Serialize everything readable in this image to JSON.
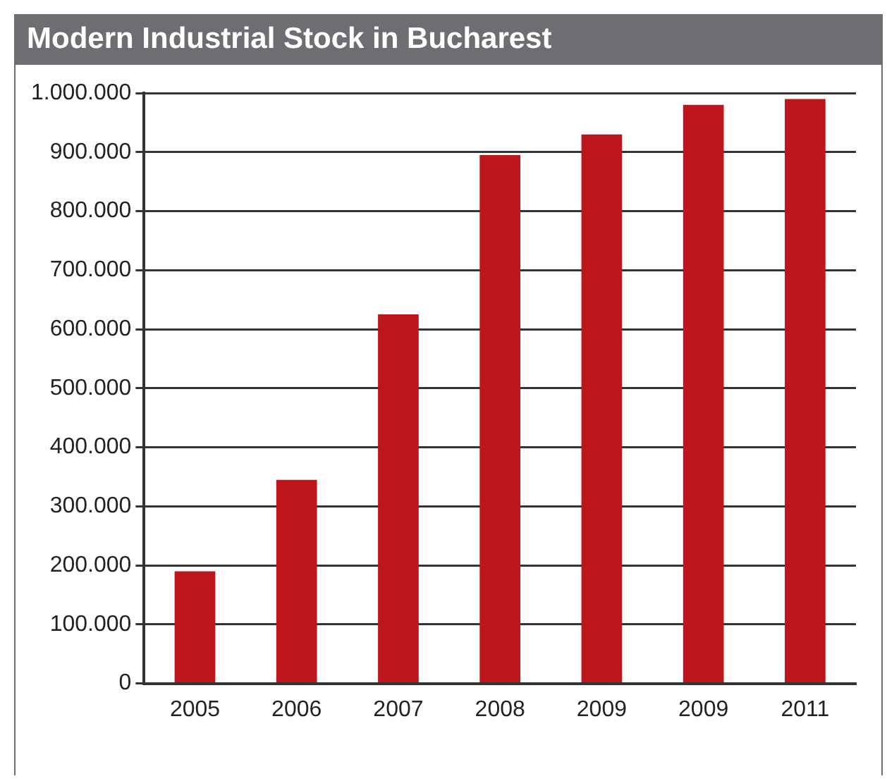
{
  "chart_data": {
    "type": "bar",
    "title": "Modern Industrial Stock in Bucharest",
    "categories": [
      "2005",
      "2006",
      "2007",
      "2008",
      "2009",
      "2009",
      "2011"
    ],
    "values": [
      190000,
      345000,
      625000,
      895000,
      930000,
      980000,
      990000
    ],
    "color": "#be141c",
    "ylim": [
      0,
      1000000
    ],
    "yticks": [
      {
        "value": 0,
        "label": "0"
      },
      {
        "value": 100000,
        "label": "100.000"
      },
      {
        "value": 200000,
        "label": "200.000"
      },
      {
        "value": 300000,
        "label": "300.000"
      },
      {
        "value": 400000,
        "label": "400.000"
      },
      {
        "value": 500000,
        "label": "500.000"
      },
      {
        "value": 600000,
        "label": "600.000"
      },
      {
        "value": 700000,
        "label": "700.000"
      },
      {
        "value": 800000,
        "label": "800.000"
      },
      {
        "value": 900000,
        "label": "900.000"
      },
      {
        "value": 1000000,
        "label": "1.000.000"
      }
    ],
    "grid": "y",
    "legend": false
  }
}
